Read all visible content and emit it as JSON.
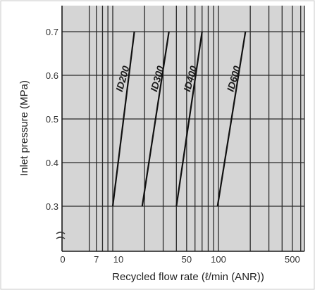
{
  "chart_data": {
    "type": "line",
    "xlabel": "Recycled flow rate (ℓ/min (ANR))",
    "ylabel": "Inlet pressure (MPa)",
    "x_scale": "log",
    "xlim": [
      5,
      700
    ],
    "ylim": [
      0.3,
      0.7
    ],
    "x_tick_labels": [
      "0",
      "7",
      "10",
      "50",
      "100",
      "500"
    ],
    "y_tick_labels": [
      "0.7",
      "0.6",
      "0.5",
      "0.4",
      "0.3"
    ],
    "grid": true,
    "series": [
      {
        "name": "ID200",
        "x": [
          10,
          16
        ],
        "y": [
          0.3,
          0.7
        ]
      },
      {
        "name": "ID300",
        "x": [
          19,
          34
        ],
        "y": [
          0.3,
          0.7
        ]
      },
      {
        "name": "ID400",
        "x": [
          40,
          70
        ],
        "y": [
          0.3,
          0.7
        ]
      },
      {
        "name": "ID600",
        "x": [
          98,
          180
        ],
        "y": [
          0.3,
          0.7
        ]
      }
    ]
  }
}
